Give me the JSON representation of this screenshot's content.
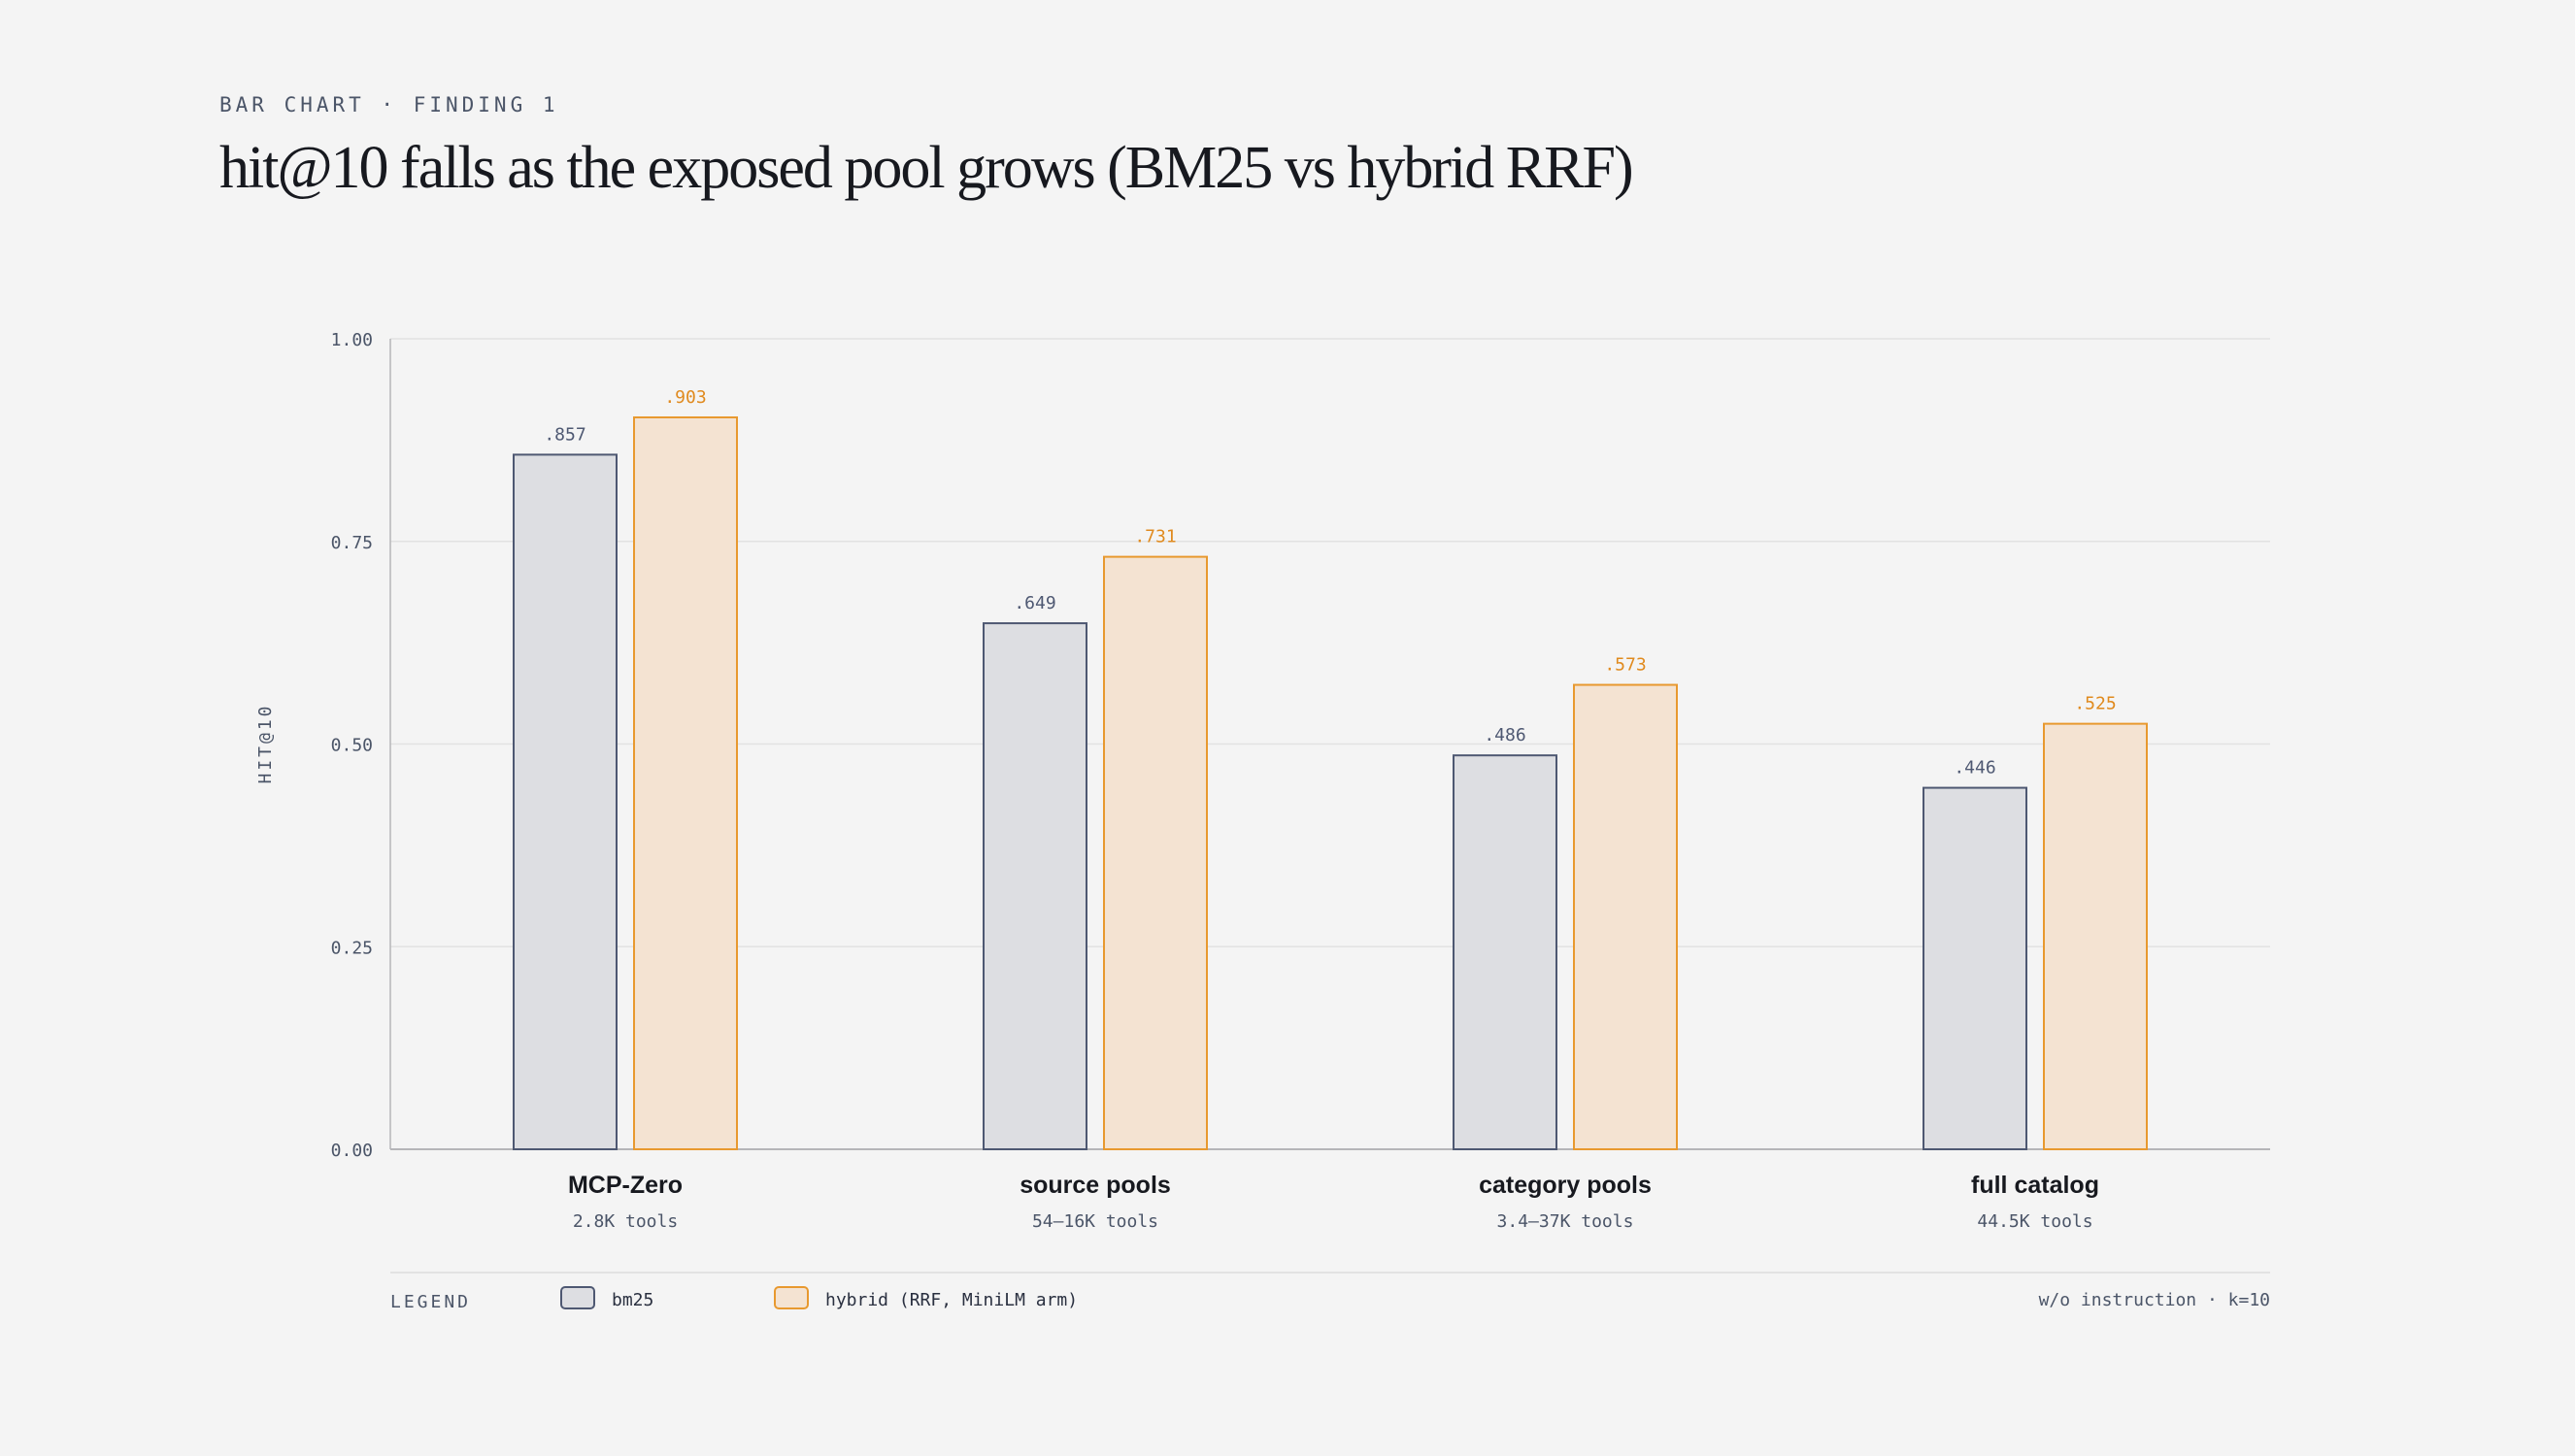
{
  "header": {
    "eyebrow": "BAR CHART · FINDING 1",
    "title": "hit@10 falls as the exposed pool grows (BM25 vs hybrid RRF)"
  },
  "colors": {
    "bm25_fill": "#dddee2",
    "bm25_stroke": "#4e5872",
    "hybrid_fill": "#f4e3d2",
    "hybrid_stroke": "#e8992f",
    "hybrid_label": "#e08a1e",
    "grid": "#e2e2e2",
    "axis": "#b5b5b8",
    "text_muted": "#4b5568"
  },
  "chart_data": {
    "type": "bar",
    "ylabel": "HIT@10",
    "ylim": [
      0,
      1
    ],
    "yticks": [
      "0.00",
      "0.25",
      "0.50",
      "0.75",
      "1.00"
    ],
    "ytick_values": [
      0,
      0.25,
      0.5,
      0.75,
      1
    ],
    "grid": true,
    "categories": [
      "MCP-Zero",
      "source pools",
      "category pools",
      "full catalog"
    ],
    "category_subtitles": [
      "2.8K tools",
      "54–16K tools",
      "3.4–37K tools",
      "44.5K tools"
    ],
    "series": [
      {
        "name": "bm25",
        "values": [
          0.857,
          0.649,
          0.486,
          0.446
        ],
        "labels": [
          ".857",
          ".649",
          ".486",
          ".446"
        ]
      },
      {
        "name": "hybrid (RRF, MiniLM arm)",
        "values": [
          0.903,
          0.731,
          0.573,
          0.525
        ],
        "labels": [
          ".903",
          ".731",
          ".573",
          ".525"
        ]
      }
    ],
    "legend": {
      "title": "LEGEND",
      "placement": "bottom",
      "note": "w/o instruction · k=10"
    }
  }
}
